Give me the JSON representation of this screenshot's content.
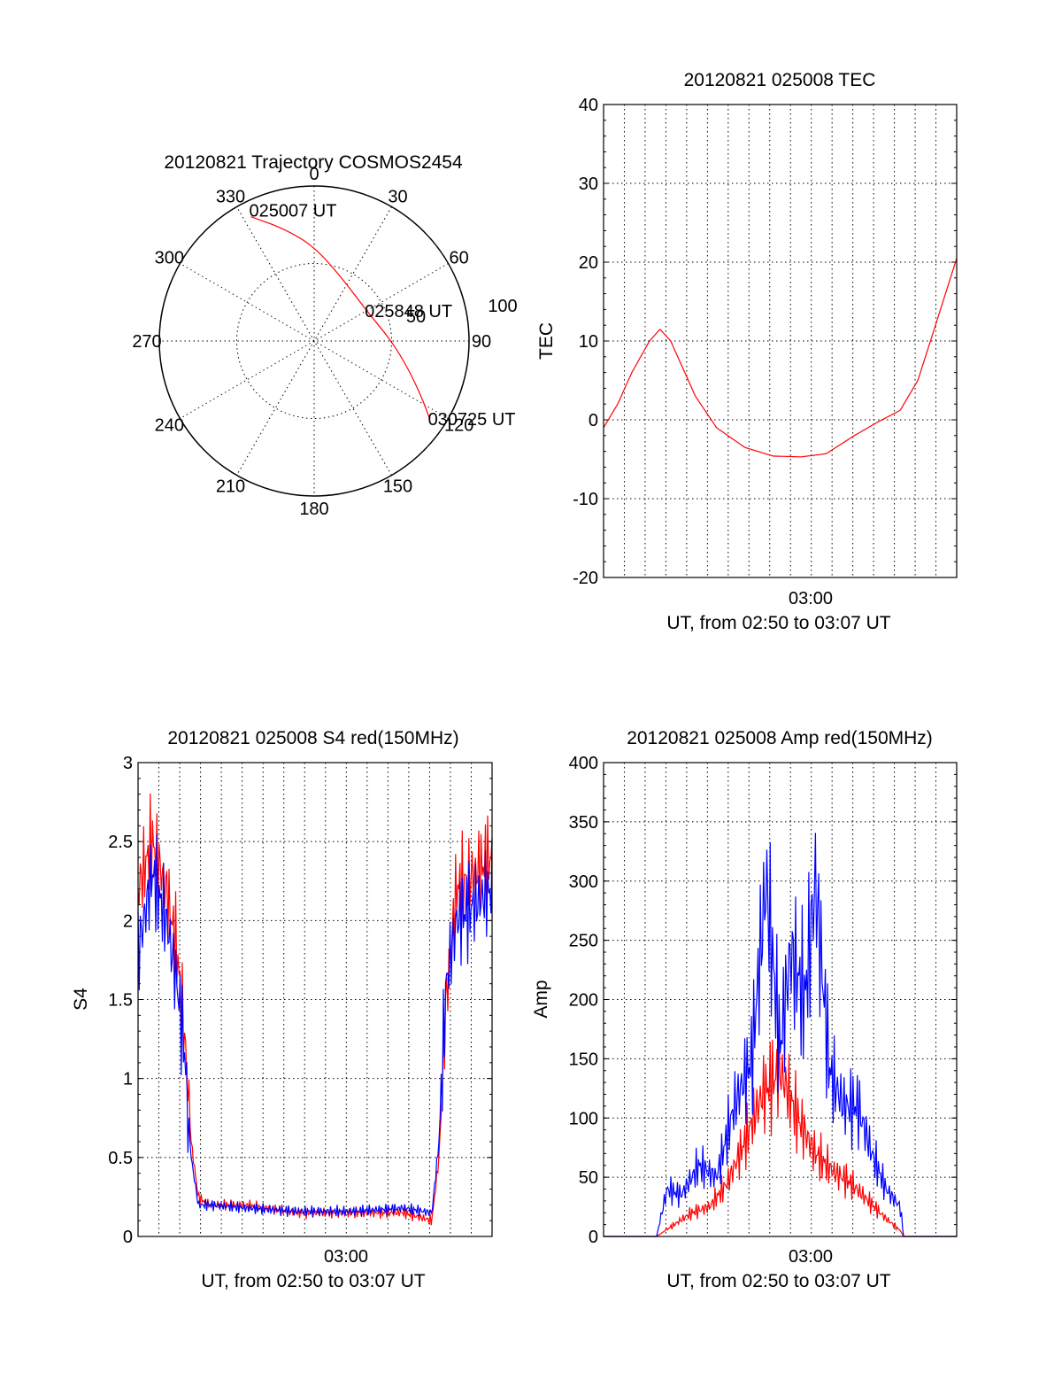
{
  "chart_data": [
    {
      "type": "polar",
      "title": "20120821 Trajectory COSMOS2454",
      "azimuth_labels": [
        "0",
        "30",
        "60",
        "90",
        "120",
        "150",
        "180",
        "210",
        "240",
        "270",
        "300",
        "330"
      ],
      "radius_labels": [
        "50",
        "100"
      ],
      "series": [
        {
          "color": "#ff0000",
          "points": [
            {
              "az": 333,
              "r": 90
            },
            {
              "az": 345,
              "r": 75
            },
            {
              "az": 0,
              "r": 61
            },
            {
              "az": 25,
              "r": 44
            },
            {
              "az": 60,
              "r": 39
            },
            {
              "az": 90,
              "r": 50
            },
            {
              "az": 107,
              "r": 64
            },
            {
              "az": 118,
              "r": 79
            },
            {
              "az": 124,
              "r": 90
            }
          ]
        }
      ],
      "annotations": [
        {
          "text": "025007 UT",
          "az": 333,
          "r": 90
        },
        {
          "text": "025848 UT",
          "az": 60,
          "r": 39
        },
        {
          "text": "030725 UT",
          "az": 124,
          "r": 90
        }
      ]
    },
    {
      "type": "line",
      "title": "20120821 025008 TEC",
      "ylabel": "TEC",
      "xlabel": "UT, from 02:50 to 03:07 UT",
      "xtick_label": "03:00",
      "ylim": [
        -20,
        40
      ],
      "yticks": [
        "-20",
        "-10",
        "0",
        "10",
        "20",
        "30",
        "40"
      ],
      "series": [
        {
          "color": "#ff0000",
          "x": [
            0.0,
            0.04,
            0.08,
            0.13,
            0.16,
            0.19,
            0.22,
            0.26,
            0.32,
            0.4,
            0.48,
            0.56,
            0.63,
            0.71,
            0.78,
            0.84,
            0.89,
            0.94,
            1.0
          ],
          "y": [
            -1,
            2,
            6,
            10,
            11.5,
            10,
            7,
            3,
            -1,
            -3.5,
            -4.6,
            -4.7,
            -4.3,
            -2,
            -0.2,
            1.2,
            5,
            12,
            20.5
          ]
        }
      ]
    },
    {
      "type": "line",
      "title": "20120821 025008 S4 red(150MHz)",
      "ylabel": "S4",
      "xlabel": "UT, from 02:50 to 03:07 UT",
      "xtick_label": "03:00",
      "ylim": [
        0,
        3
      ],
      "yticks": [
        "0",
        "0.5",
        "1",
        "1.5",
        "2",
        "2.5",
        "3"
      ],
      "series": [
        {
          "color": "#ff0000",
          "x": [
            0.0,
            0.04,
            0.08,
            0.11,
            0.13,
            0.15,
            0.17,
            0.2,
            0.3,
            0.45,
            0.6,
            0.75,
            0.83,
            0.85,
            0.87,
            0.9,
            0.95,
            1.0
          ],
          "y": [
            2.2,
            2.5,
            2.2,
            1.8,
            1.3,
            0.6,
            0.25,
            0.2,
            0.2,
            0.15,
            0.15,
            0.15,
            0.1,
            0.5,
            1.5,
            2.2,
            2.3,
            2.4
          ]
        },
        {
          "color": "#0000ff",
          "x": [
            0.0,
            0.04,
            0.08,
            0.11,
            0.13,
            0.15,
            0.17,
            0.2,
            0.3,
            0.45,
            0.6,
            0.75,
            0.83,
            0.85,
            0.87,
            0.9,
            0.95,
            1.0
          ],
          "y": [
            1.8,
            2.3,
            2.0,
            1.6,
            1.2,
            0.5,
            0.2,
            0.2,
            0.18,
            0.16,
            0.16,
            0.18,
            0.15,
            0.6,
            1.6,
            2.0,
            2.1,
            2.2
          ]
        }
      ]
    },
    {
      "type": "line",
      "title": "20120821 025008 Amp red(150MHz)",
      "ylabel": "Amp",
      "xlabel": "UT, from 02:50 to 03:07 UT",
      "xtick_label": "03:00",
      "ylim": [
        0,
        400
      ],
      "yticks": [
        "0",
        "50",
        "100",
        "150",
        "200",
        "250",
        "300",
        "350",
        "400"
      ],
      "series": [
        {
          "color": "#ff0000",
          "x": [
            0.0,
            0.15,
            0.2,
            0.25,
            0.3,
            0.35,
            0.4,
            0.45,
            0.5,
            0.55,
            0.6,
            0.65,
            0.7,
            0.75,
            0.8,
            0.84,
            0.85,
            1.0
          ],
          "y": [
            0,
            0,
            10,
            20,
            25,
            45,
            80,
            120,
            140,
            100,
            70,
            55,
            45,
            30,
            15,
            5,
            0,
            0
          ]
        },
        {
          "color": "#0000ff",
          "x": [
            0.0,
            0.15,
            0.18,
            0.22,
            0.27,
            0.32,
            0.37,
            0.42,
            0.46,
            0.5,
            0.53,
            0.57,
            0.6,
            0.64,
            0.68,
            0.72,
            0.76,
            0.8,
            0.84,
            0.85,
            1.0
          ],
          "y": [
            0,
            0,
            40,
            35,
            60,
            50,
            110,
            150,
            300,
            160,
            240,
            200,
            300,
            140,
            110,
            110,
            70,
            40,
            25,
            0,
            0
          ]
        }
      ]
    }
  ]
}
